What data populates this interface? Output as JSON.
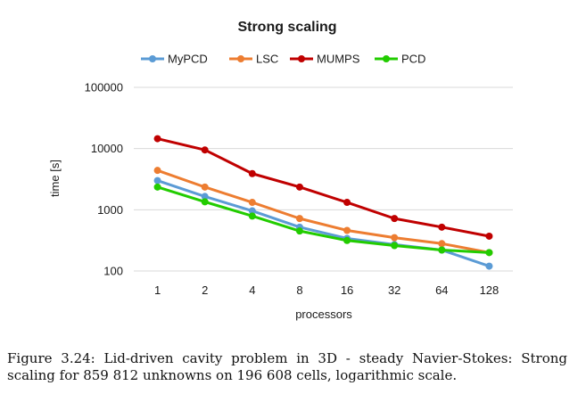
{
  "chart_data": {
    "type": "line",
    "title": "Strong scaling",
    "xlabel": "processors",
    "ylabel": "time [s]",
    "yscale": "log",
    "ylim": [
      100,
      100000
    ],
    "yticks": [
      "100",
      "1000",
      "10000",
      "100000"
    ],
    "categories": [
      "1",
      "2",
      "4",
      "8",
      "16",
      "32",
      "64",
      "128"
    ],
    "grid": "horizontal",
    "legend": "top",
    "series": [
      {
        "name": "MyPCD",
        "color": "#5b9bd5",
        "values": [
          3000,
          1650,
          960,
          520,
          340,
          270,
          220,
          120
        ]
      },
      {
        "name": "LSC",
        "color": "#ed7d31",
        "values": [
          4400,
          2350,
          1320,
          720,
          460,
          350,
          280,
          200
        ]
      },
      {
        "name": "MUMPS",
        "color": "#c00000",
        "values": [
          14500,
          9500,
          3900,
          2350,
          1320,
          720,
          520,
          370
        ]
      },
      {
        "name": "PCD",
        "color": "#22cc00",
        "values": [
          2350,
          1350,
          790,
          450,
          315,
          260,
          220,
          200
        ]
      }
    ]
  },
  "caption": "Figure 3.24: Lid-driven cavity problem in 3D - steady Navier-Stokes: Strong scaling for 859 812 unknowns on 196 608 cells, logarithmic scale."
}
